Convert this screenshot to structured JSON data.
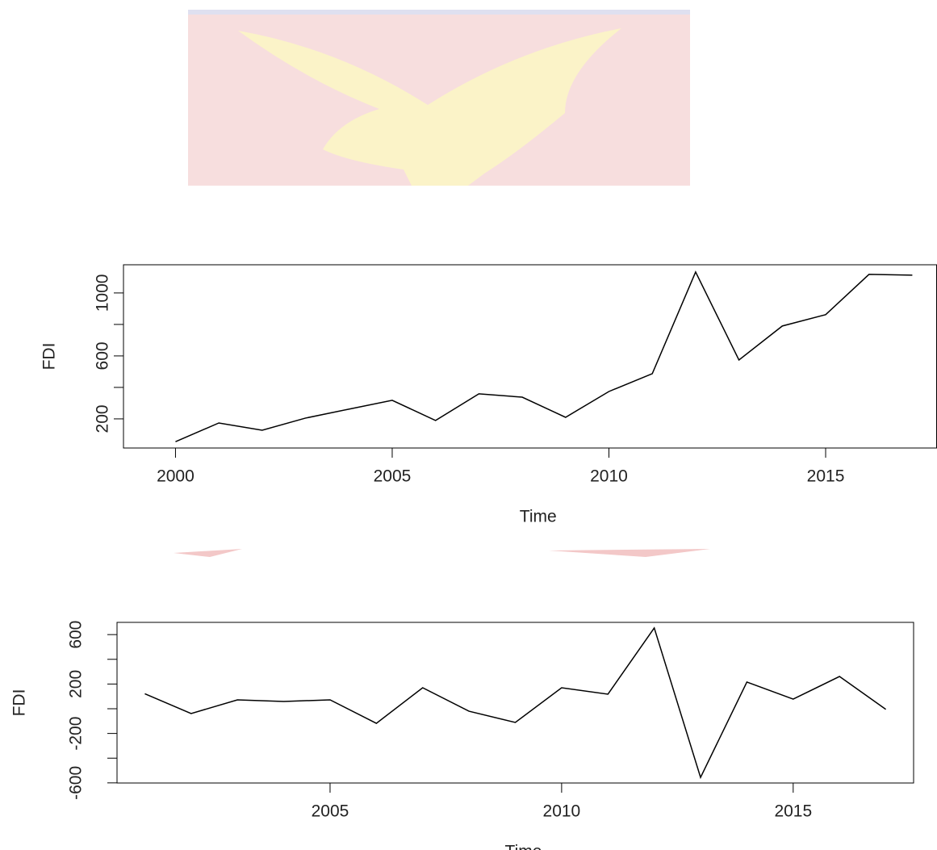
{
  "chart_data": [
    {
      "type": "line",
      "xlabel": "Time",
      "ylabel": "FDI",
      "x": [
        2000,
        2001,
        2002,
        2003,
        2004,
        2005,
        2006,
        2007,
        2008,
        2009,
        2010,
        2011,
        2012,
        2013,
        2014,
        2015,
        2016,
        2017
      ],
      "series": [
        {
          "color": "#000000",
          "values": [
            55,
            174,
            128,
            205,
            262,
            318,
            190,
            359,
            338,
            210,
            374,
            487,
            1133,
            574,
            790,
            862,
            1118,
            1113
          ]
        }
      ],
      "xlim": [
        1998.8,
        2017.56
      ],
      "xticks": [
        2000,
        2005,
        2010,
        2015
      ],
      "ylim": [
        15,
        1179
      ],
      "yticks": [
        200,
        600,
        1000
      ],
      "yminorticks": [
        400,
        800
      ]
    },
    {
      "type": "line",
      "xlabel": "Time",
      "ylabel": "FDI",
      "x": [
        2001,
        2002,
        2003,
        2004,
        2005,
        2006,
        2007,
        2008,
        2009,
        2010,
        2011,
        2012,
        2013,
        2014,
        2015,
        2016,
        2017
      ],
      "series": [
        {
          "color": "#000000",
          "values": [
            121,
            -39,
            72,
            59,
            72,
            -118,
            170,
            -20,
            -111,
            170,
            118,
            654,
            -556,
            216,
            78,
            261,
            -5
          ]
        }
      ],
      "xlim": [
        2000.4,
        2017.6
      ],
      "xticks": [
        2005,
        2010,
        2015
      ],
      "ylim": [
        -601,
        699
      ],
      "yticks": [
        600,
        200,
        -200,
        -600
      ],
      "yminorticks": [
        400,
        0,
        -400
      ]
    }
  ]
}
